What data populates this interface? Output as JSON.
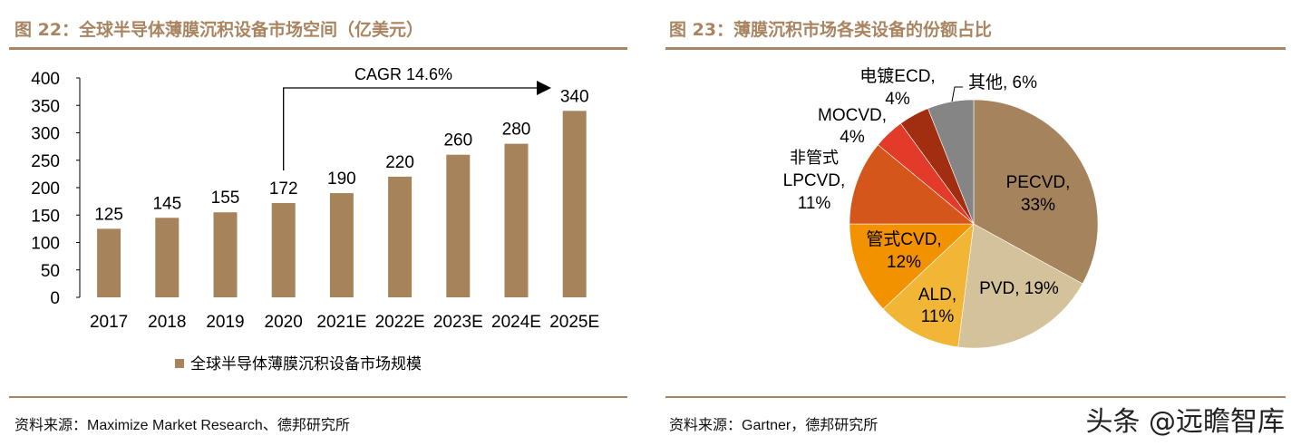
{
  "left": {
    "title": "图 22：全球半导体薄膜沉积设备市场空间（亿美元）",
    "source": "资料来源：Maximize Market Research、德邦研究所"
  },
  "right": {
    "title": "图 23：薄膜沉积市场各类设备的份额占比",
    "source": "资料来源：Gartner，德邦研究所"
  },
  "watermark": "头条 @远瞻智库",
  "chart_data": [
    {
      "type": "bar",
      "categories": [
        "2017",
        "2018",
        "2019",
        "2020",
        "2021E",
        "2022E",
        "2023E",
        "2024E",
        "2025E"
      ],
      "series": [
        {
          "name": "全球半导体薄膜沉积设备市场规模",
          "values": [
            125,
            145,
            155,
            172,
            190,
            220,
            260,
            280,
            340
          ]
        }
      ],
      "ylim": [
        0,
        400
      ],
      "yticks": [
        0,
        50,
        100,
        150,
        200,
        250,
        300,
        350,
        400
      ],
      "legend": "bottom",
      "grid": false,
      "annotation": "CAGR 14.6%",
      "color": "#A6835A"
    },
    {
      "type": "pie",
      "slices": [
        {
          "label": "PECVD,",
          "pct": "33%",
          "value": 33,
          "color": "#A5835C"
        },
        {
          "label": "PVD,",
          "pct": "19%",
          "value": 19,
          "color": "#D4C29A"
        },
        {
          "label": "ALD,",
          "pct": "11%",
          "value": 11,
          "color": "#F2B636"
        },
        {
          "label": "管式CVD,",
          "pct": "12%",
          "value": 12,
          "color": "#F39200"
        },
        {
          "label": "非管式 LPCVD,",
          "pct": "11%",
          "value": 11,
          "color": "#D5561A"
        },
        {
          "label": "MOCVD,",
          "pct": "4%",
          "value": 4,
          "color": "#E23B2A"
        },
        {
          "label": "电镀ECD,",
          "pct": "4%",
          "value": 4,
          "color": "#A22E12"
        },
        {
          "label": "其他,",
          "pct": "6%",
          "value": 6,
          "color": "#858585"
        }
      ]
    }
  ]
}
